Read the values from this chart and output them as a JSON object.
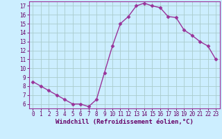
{
  "x": [
    0,
    1,
    2,
    3,
    4,
    5,
    6,
    7,
    8,
    9,
    10,
    11,
    12,
    13,
    14,
    15,
    16,
    17,
    18,
    19,
    20,
    21,
    22,
    23
  ],
  "y": [
    8.5,
    8.0,
    7.5,
    7.0,
    6.5,
    6.0,
    6.0,
    5.7,
    6.5,
    9.5,
    12.5,
    15.0,
    15.8,
    17.0,
    17.3,
    17.0,
    16.8,
    15.8,
    15.7,
    14.3,
    13.7,
    13.0,
    12.5,
    11.0
  ],
  "xlabel": "Windchill (Refroidissement éolien,°C)",
  "ylim": [
    5.5,
    17.5
  ],
  "xlim": [
    -0.5,
    23.5
  ],
  "yticks": [
    6,
    7,
    8,
    9,
    10,
    11,
    12,
    13,
    14,
    15,
    16,
    17
  ],
  "xticks": [
    0,
    1,
    2,
    3,
    4,
    5,
    6,
    7,
    8,
    9,
    10,
    11,
    12,
    13,
    14,
    15,
    16,
    17,
    18,
    19,
    20,
    21,
    22,
    23
  ],
  "line_color": "#993399",
  "marker": "D",
  "marker_size": 2.5,
  "bg_color": "#cceeff",
  "grid_color": "#aacccc",
  "font_family": "monospace",
  "tick_fontsize": 5.5,
  "xlabel_fontsize": 6.5
}
